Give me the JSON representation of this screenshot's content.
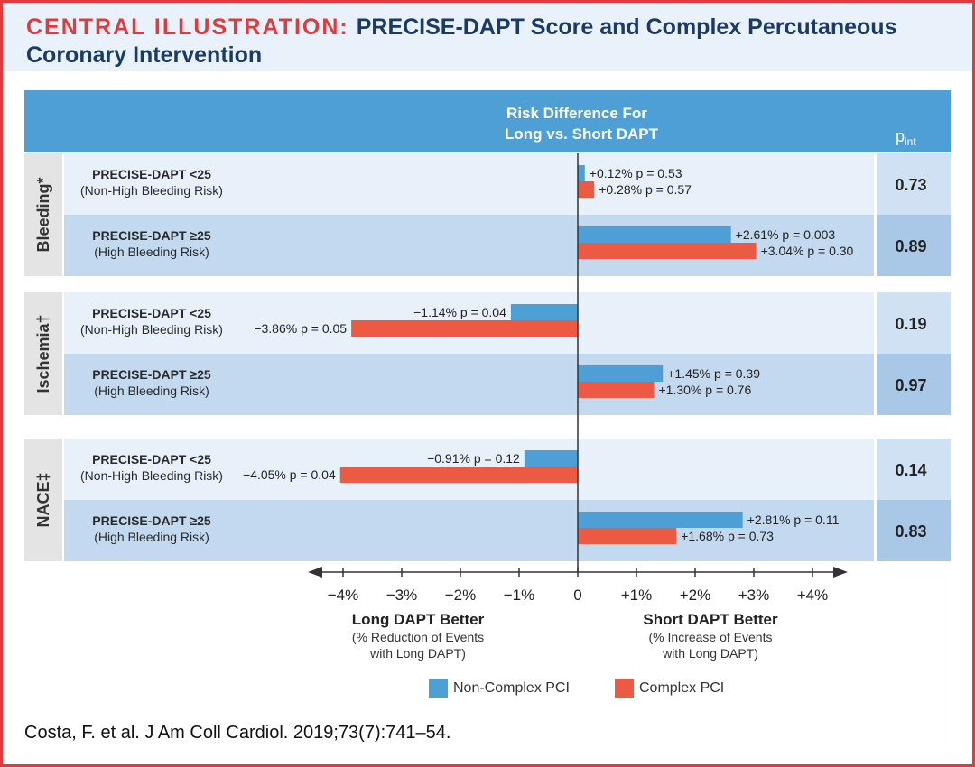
{
  "title": {
    "lead": "CENTRAL ILLUSTRATION:",
    "text": "PRECISE-DAPT Score and Complex Percutaneous Coronary Intervention"
  },
  "colors": {
    "accent_red": "#e03a3e",
    "navy": "#1b3a66",
    "header_blue": "#4d9fd6",
    "series_non_complex": "#4d9fd6",
    "series_complex": "#ed5a44"
  },
  "chart_data": {
    "type": "bar",
    "orientation": "horizontal",
    "header_title": [
      "Risk Difference For",
      "Long vs. Short DAPT"
    ],
    "pint_header": "p",
    "pint_header_sub": "int",
    "xlim": [
      -4.6,
      4.6
    ],
    "xticks": [
      -4,
      -3,
      -2,
      -1,
      0,
      1,
      2,
      3,
      4
    ],
    "xtick_labels": [
      "−4%",
      "−3%",
      "−2%",
      "−1%",
      "0",
      "+1%",
      "+2%",
      "+3%",
      "+4%"
    ],
    "axis_left_title": "Long DAPT Better",
    "axis_left_sub": [
      "(% Reduction of Events",
      "with Long DAPT)"
    ],
    "axis_right_title": "Short DAPT Better",
    "axis_right_sub": [
      "(% Increase of Events",
      "with Long DAPT)"
    ],
    "series_names": [
      "Non-Complex PCI",
      "Complex PCI"
    ],
    "groups": [
      {
        "name": "Bleeding*",
        "rows": [
          {
            "label1": "PRECISE-DAPT <25",
            "label2": "(Non-High Bleeding Risk)",
            "pint": "0.73",
            "values": [
              0.12,
              0.28
            ],
            "labels": [
              "+0.12% p = 0.53",
              "+0.28% p = 0.57"
            ]
          },
          {
            "label1": "PRECISE-DAPT ≥25",
            "label2": "(High Bleeding Risk)",
            "pint": "0.89",
            "values": [
              2.61,
              3.04
            ],
            "labels": [
              "+2.61% p = 0.003",
              "+3.04% p = 0.30"
            ]
          }
        ]
      },
      {
        "name": "Ischemia†",
        "rows": [
          {
            "label1": "PRECISE-DAPT <25",
            "label2": "(Non-High Bleeding Risk)",
            "pint": "0.19",
            "values": [
              -1.14,
              -3.86
            ],
            "labels": [
              "−1.14% p = 0.04",
              "−3.86% p = 0.05"
            ]
          },
          {
            "label1": "PRECISE-DAPT ≥25",
            "label2": "(High Bleeding Risk)",
            "pint": "0.97",
            "values": [
              1.45,
              1.3
            ],
            "labels": [
              "+1.45% p = 0.39",
              "+1.30% p = 0.76"
            ]
          }
        ]
      },
      {
        "name": "NACE‡",
        "rows": [
          {
            "label1": "PRECISE-DAPT <25",
            "label2": "(Non-High Bleeding Risk)",
            "pint": "0.14",
            "values": [
              -0.91,
              -4.05
            ],
            "labels": [
              "−0.91% p = 0.12",
              "−4.05% p = 0.04"
            ]
          },
          {
            "label1": "PRECISE-DAPT ≥25",
            "label2": "(High Bleeding Risk)",
            "pint": "0.83",
            "values": [
              2.81,
              1.68
            ],
            "labels": [
              "+2.81% p = 0.11",
              "+1.68% p = 0.73"
            ]
          }
        ]
      }
    ]
  },
  "legend": {
    "non_complex": "Non-Complex PCI",
    "complex": "Complex PCI"
  },
  "citation": "Costa, F. et al. J Am Coll Cardiol. 2019;73(7):741–54."
}
